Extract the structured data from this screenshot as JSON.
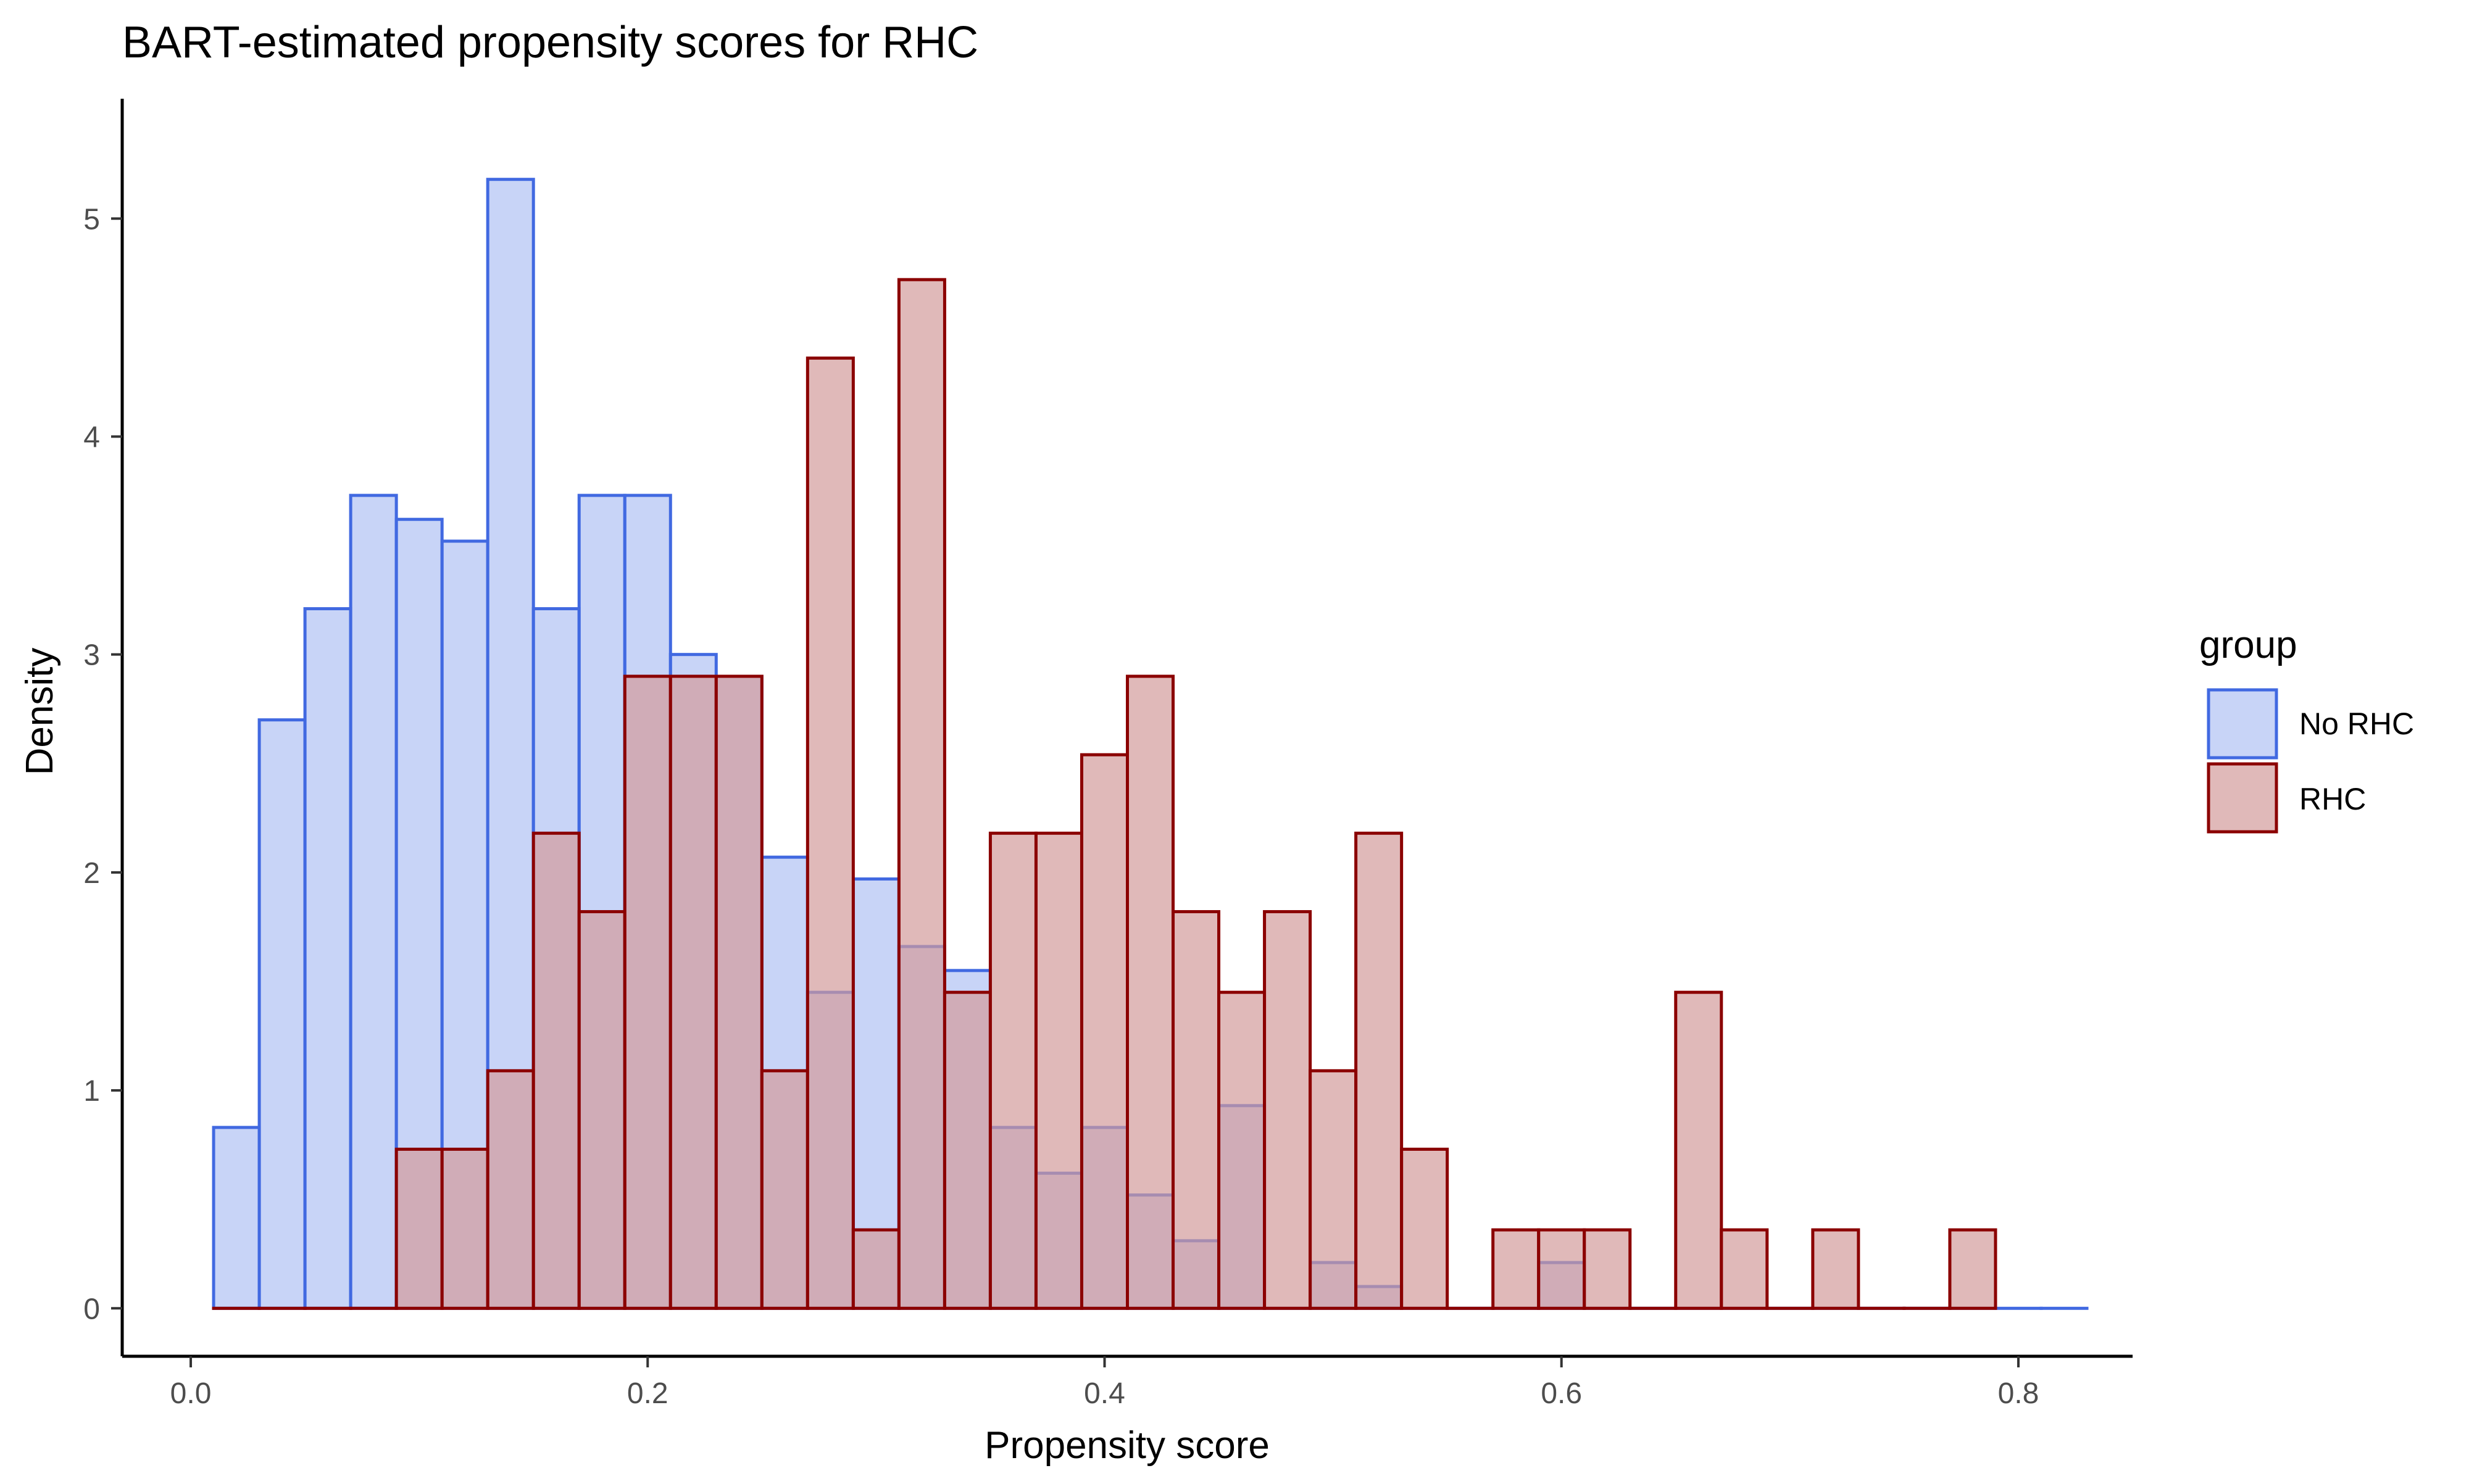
{
  "chart_data": {
    "type": "bar",
    "title": "BART-estimated propensity scores for RHC",
    "xlabel": "Propensity score",
    "ylabel": "Density",
    "xlim": [
      -0.03,
      0.85
    ],
    "ylim": [
      -0.22,
      5.55
    ],
    "x_ticks": [
      0.0,
      0.2,
      0.4,
      0.6,
      0.8
    ],
    "x_tick_labels": [
      "0.0",
      "0.2",
      "0.4",
      "0.6",
      "0.8"
    ],
    "y_ticks": [
      0,
      1,
      2,
      3,
      4,
      5
    ],
    "y_tick_labels": [
      "0",
      "1",
      "2",
      "3",
      "4",
      "5"
    ],
    "bin_start": 0.01,
    "bin_width": 0.02,
    "grid": false,
    "legend": {
      "title": "group",
      "position": "right",
      "entries": [
        "No RHC",
        "RHC"
      ]
    },
    "series": [
      {
        "name": "No RHC",
        "fill": "#B0C2F3",
        "stroke": "#4169E1",
        "values": [
          0.83,
          2.7,
          3.21,
          3.73,
          3.62,
          3.52,
          5.18,
          3.21,
          3.73,
          3.73,
          3.0,
          2.9,
          2.07,
          1.45,
          1.97,
          1.66,
          1.55,
          0.83,
          0.62,
          0.83,
          0.52,
          0.31,
          0.93,
          0,
          0.21,
          0.1,
          0,
          0,
          0,
          0.21,
          0,
          0,
          0,
          0,
          0,
          0,
          0,
          0,
          0,
          0,
          0
        ]
      },
      {
        "name": "RHC",
        "fill": "#D39B9B",
        "stroke": "#8B0000",
        "values": [
          0,
          0,
          0,
          0,
          0.73,
          0.73,
          1.09,
          2.18,
          1.82,
          2.9,
          2.9,
          2.9,
          1.09,
          4.36,
          0.36,
          4.72,
          1.45,
          2.18,
          2.18,
          2.54,
          2.9,
          1.82,
          1.45,
          1.82,
          1.09,
          2.18,
          0.73,
          0,
          0.36,
          0.36,
          0.36,
          0,
          1.45,
          0.36,
          0,
          0.36,
          0,
          0,
          0.36
        ]
      }
    ]
  }
}
